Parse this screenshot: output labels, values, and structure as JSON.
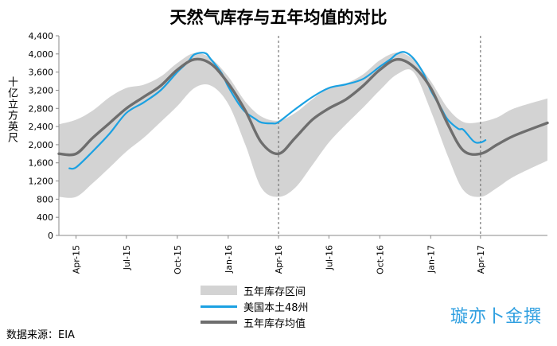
{
  "chart_data": {
    "type": "line",
    "title": "天然气库存与五年均值的对比",
    "ylabel": "十亿立方英尺",
    "ylim": [
      0,
      4400
    ],
    "yticks": [
      0,
      400,
      800,
      1200,
      1600,
      2000,
      2400,
      2800,
      3200,
      3600,
      4000,
      4400
    ],
    "xlim": [
      "2015-03-01",
      "2017-07-31"
    ],
    "xticks": [
      {
        "label": "Apr-15",
        "date": "2015-04-01"
      },
      {
        "label": "Jul-15",
        "date": "2015-07-01"
      },
      {
        "label": "Oct-15",
        "date": "2015-10-01"
      },
      {
        "label": "Jan-16",
        "date": "2016-01-01"
      },
      {
        "label": "Apr-16",
        "date": "2016-04-01"
      },
      {
        "label": "Jul-16",
        "date": "2016-07-01"
      },
      {
        "label": "Oct-16",
        "date": "2016-10-01"
      },
      {
        "label": "Jan-17",
        "date": "2017-01-01"
      },
      {
        "label": "Apr-17",
        "date": "2017-04-01"
      }
    ],
    "vlines": [
      "2016-04-01",
      "2017-04-01"
    ],
    "grid": false,
    "legend_position": "bottom-center",
    "band": {
      "name": "五年库存区间",
      "color": "#d3d3d3",
      "x": [
        "2015-03-01",
        "2015-04-01",
        "2015-05-01",
        "2015-06-01",
        "2015-07-01",
        "2015-08-01",
        "2015-09-01",
        "2015-10-01",
        "2015-11-01",
        "2015-12-01",
        "2016-01-01",
        "2016-02-01",
        "2016-03-01",
        "2016-04-01",
        "2016-05-01",
        "2016-06-01",
        "2016-07-01",
        "2016-08-01",
        "2016-09-01",
        "2016-10-01",
        "2016-11-01",
        "2016-12-01",
        "2017-01-01",
        "2017-02-01",
        "2017-03-01",
        "2017-04-01",
        "2017-05-01",
        "2017-06-01",
        "2017-07-31"
      ],
      "upper": [
        2450,
        2550,
        2750,
        3050,
        3250,
        3320,
        3500,
        3800,
        4020,
        3900,
        3500,
        2950,
        2620,
        2530,
        2700,
        3000,
        3250,
        3350,
        3550,
        3860,
        4030,
        3880,
        3400,
        2800,
        2500,
        2500,
        2600,
        2800,
        3020
      ],
      "lower": [
        850,
        850,
        1150,
        1500,
        1850,
        2150,
        2500,
        2850,
        3250,
        3300,
        2900,
        2000,
        1050,
        850,
        1050,
        1550,
        2050,
        2450,
        2820,
        3200,
        3550,
        3600,
        2750,
        1750,
        1000,
        850,
        1050,
        1300,
        1650
      ]
    },
    "series": [
      {
        "name": "美国本土48州",
        "color": "#1ba1e2",
        "x": [
          "2015-03-20",
          "2015-04-01",
          "2015-05-01",
          "2015-06-01",
          "2015-07-01",
          "2015-08-01",
          "2015-09-01",
          "2015-10-01",
          "2015-10-20",
          "2015-11-01",
          "2015-11-20",
          "2015-12-01",
          "2015-12-20",
          "2016-01-01",
          "2016-01-20",
          "2016-02-01",
          "2016-02-20",
          "2016-03-01",
          "2016-03-20",
          "2016-04-01",
          "2016-05-01",
          "2016-06-01",
          "2016-07-01",
          "2016-08-01",
          "2016-09-01",
          "2016-10-01",
          "2016-10-20",
          "2016-11-01",
          "2016-11-15",
          "2016-12-01",
          "2016-12-20",
          "2017-01-01",
          "2017-01-20",
          "2017-02-01",
          "2017-02-20",
          "2017-03-01",
          "2017-03-20",
          "2017-04-01",
          "2017-04-10"
        ],
        "values": [
          1480,
          1500,
          1850,
          2250,
          2700,
          2930,
          3200,
          3600,
          3820,
          3990,
          4020,
          3880,
          3580,
          3280,
          2900,
          2720,
          2560,
          2490,
          2470,
          2500,
          2780,
          3050,
          3250,
          3330,
          3450,
          3720,
          3880,
          4000,
          4040,
          3900,
          3550,
          3200,
          2800,
          2550,
          2350,
          2330,
          2070,
          2050,
          2100
        ]
      },
      {
        "name": "五年库存均值",
        "color": "#6e6e6e",
        "x": [
          "2015-03-01",
          "2015-04-01",
          "2015-05-01",
          "2015-06-01",
          "2015-07-01",
          "2015-08-01",
          "2015-09-01",
          "2015-10-01",
          "2015-11-01",
          "2015-12-01",
          "2016-01-01",
          "2016-02-01",
          "2016-03-01",
          "2016-04-01",
          "2016-05-01",
          "2016-06-01",
          "2016-07-01",
          "2016-08-01",
          "2016-09-01",
          "2016-10-01",
          "2016-11-01",
          "2016-12-01",
          "2017-01-01",
          "2017-02-01",
          "2017-03-01",
          "2017-04-01",
          "2017-05-01",
          "2017-06-01",
          "2017-07-31"
        ],
        "values": [
          1800,
          1800,
          2150,
          2480,
          2800,
          3050,
          3300,
          3650,
          3880,
          3780,
          3350,
          2750,
          2050,
          1800,
          2150,
          2550,
          2800,
          3000,
          3300,
          3650,
          3880,
          3720,
          3250,
          2450,
          1870,
          1800,
          2000,
          2200,
          2480
        ]
      }
    ]
  },
  "source_text": "数据来源：EIA",
  "watermark_text": "璇亦卜金撰"
}
